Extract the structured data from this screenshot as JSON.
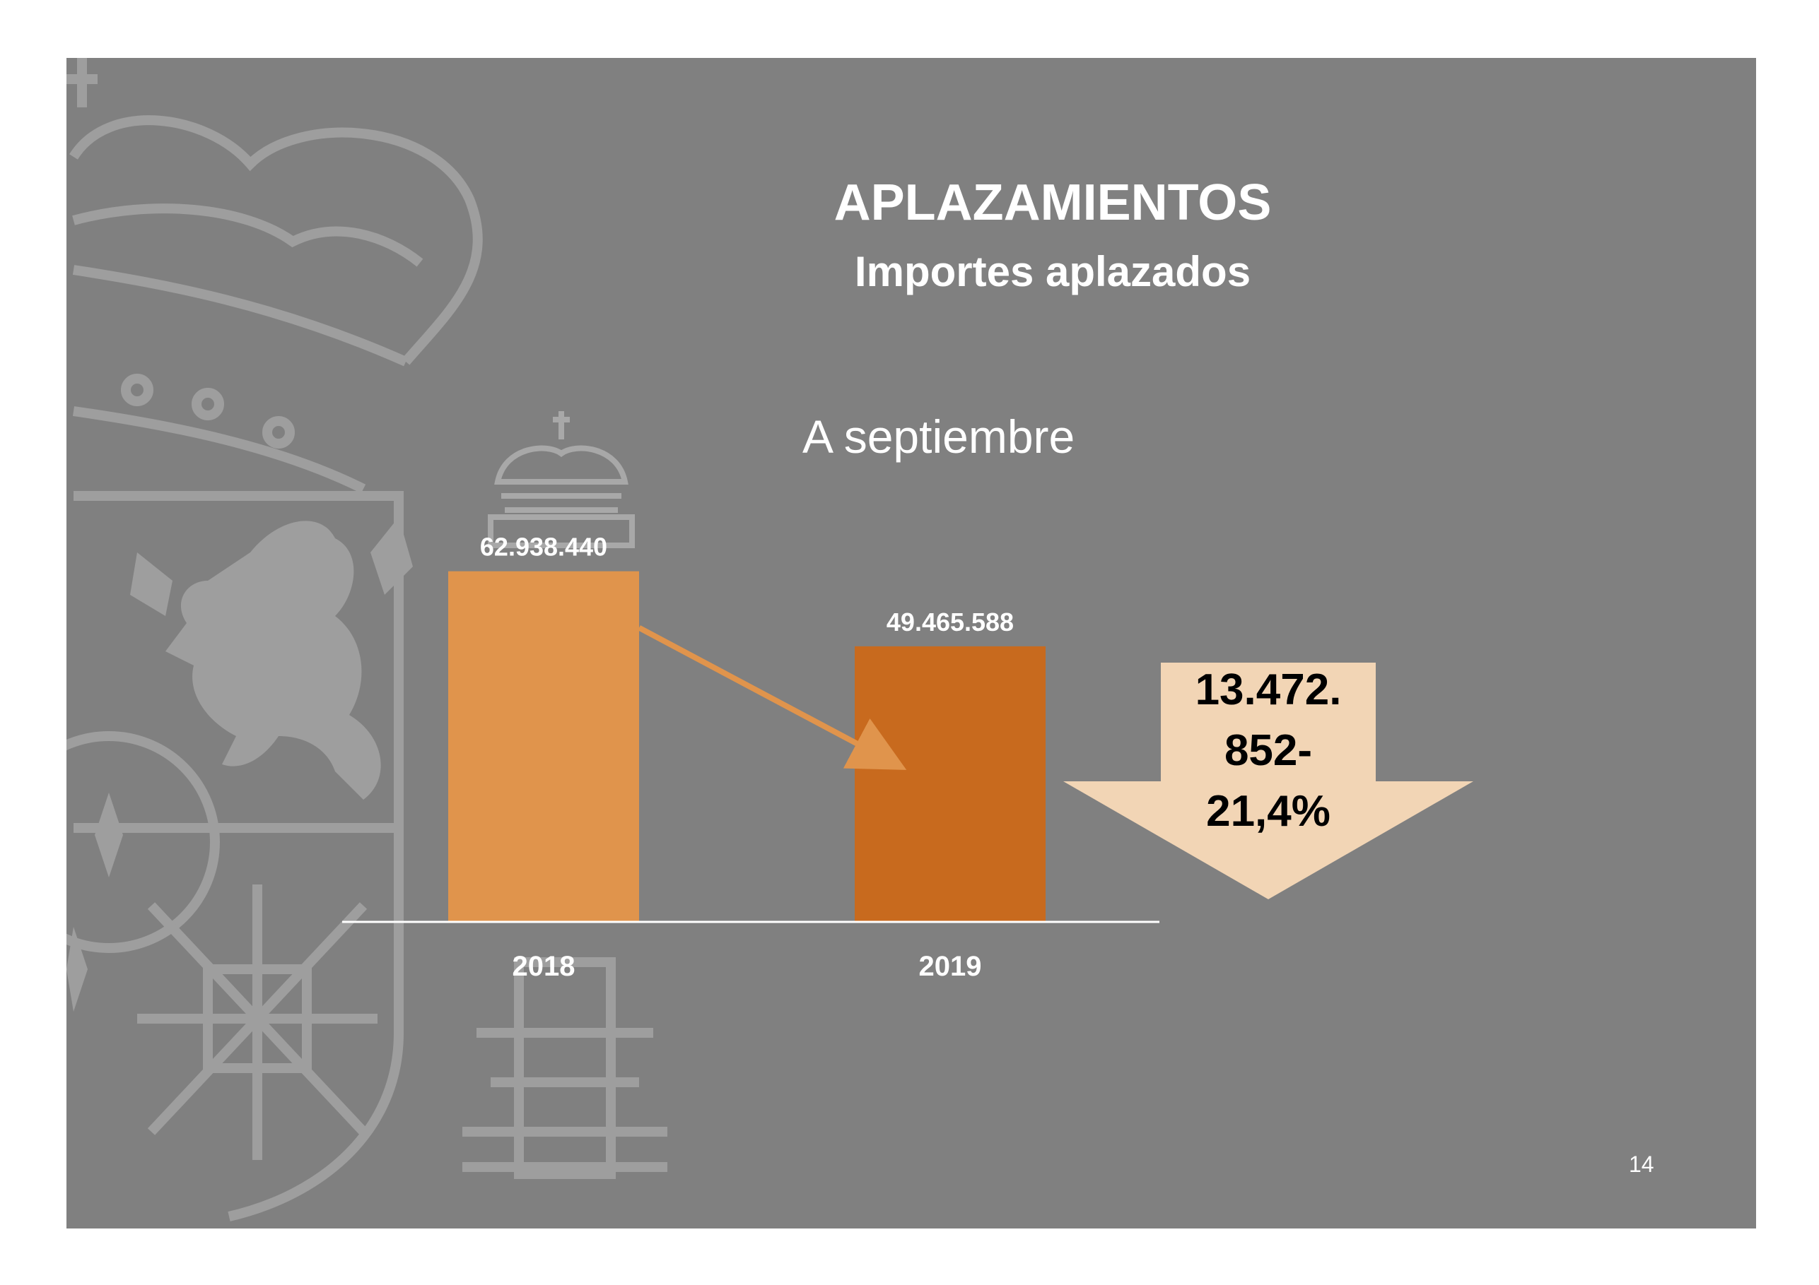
{
  "slide": {
    "title": "APLAZAMIENTOS",
    "subtitle": "Importes aplazados",
    "note": "A septiembre",
    "page_number": "14",
    "background": "#808080",
    "crest_icon": "spanish-coat-of-arms-watermark"
  },
  "callout": {
    "difference": "13.472.852",
    "difference_line1": "13.472.",
    "difference_line2": "852-",
    "percent": "21,4%",
    "fill": "#f2d5b5",
    "icon": "down-arrow-icon"
  },
  "chart_data": {
    "type": "bar",
    "categories": [
      "2018",
      "2019"
    ],
    "values": [
      62938440,
      49465588
    ],
    "value_labels": [
      "62.938.440",
      "49.465.588"
    ],
    "colors": [
      "#e0944c",
      "#c86a1e"
    ],
    "ylim": [
      0,
      64000000
    ],
    "grid": false,
    "legend": "none",
    "trend_arrow": {
      "from": "2018",
      "to": "2019",
      "color": "#e0944c"
    }
  }
}
